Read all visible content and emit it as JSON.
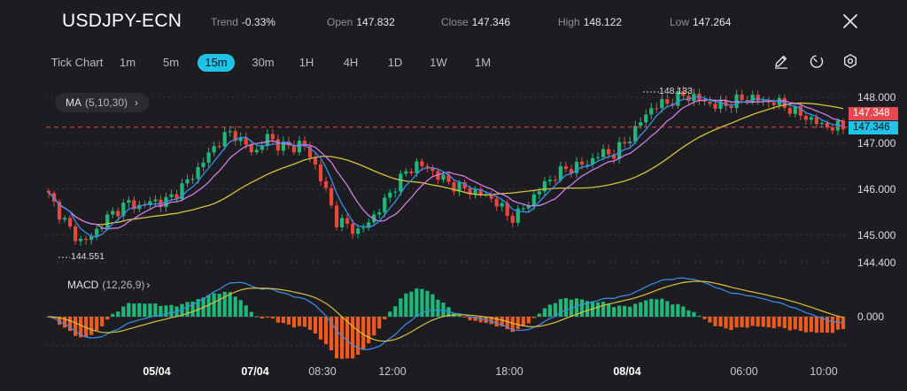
{
  "header": {
    "symbol": "USDJPY-ECN",
    "trend_label": "Trend",
    "trend_value": "-0.33%",
    "open_label": "Open",
    "open_value": "147.832",
    "close_label": "Close",
    "close_value": "147.346",
    "high_label": "High",
    "high_value": "148.122",
    "low_label": "Low",
    "low_value": "147.264"
  },
  "timeframes": {
    "tick": "Tick Chart",
    "items": [
      "1m",
      "5m",
      "15m",
      "30m",
      "1H",
      "4H",
      "1D",
      "1W",
      "1M"
    ],
    "active": "15m"
  },
  "tools": {
    "draw_icon": "pencil-icon",
    "indicator_icon": "timer-icon",
    "settings_icon": "hexagon-gear-icon"
  },
  "ma_indicator": {
    "name": "MA",
    "params": "(5,10,30)",
    "chevron": "›"
  },
  "macd_indicator": {
    "name": "MACD",
    "params": "(12,26,9)",
    "chevron": "›"
  },
  "price_axis": {
    "labels": [
      "148.000",
      "147.000",
      "146.000",
      "145.000",
      "144.400"
    ],
    "macd_zero": "0.000"
  },
  "price_tags": {
    "open_marker": "147.348",
    "current": "147.346"
  },
  "markers": {
    "high": "148.133",
    "low": "144.551"
  },
  "time_axis": [
    {
      "label": "05/04",
      "bold": true
    },
    {
      "label": "07/04",
      "bold": true
    },
    {
      "label": "08:30",
      "bold": false
    },
    {
      "label": "12:00",
      "bold": false
    },
    {
      "label": "18:00",
      "bold": false
    },
    {
      "label": "08/04",
      "bold": true
    },
    {
      "label": "06:00",
      "bold": false
    },
    {
      "label": "10:00",
      "bold": false
    }
  ],
  "colors": {
    "bull": "#1fb77a",
    "bear": "#e8473c",
    "ma5": "#3a8ff0",
    "ma10": "#d27ce8",
    "ma30": "#d8c23c",
    "macd_pos": "#1fb77a",
    "macd_neg": "#ee5b21",
    "accent": "#1ec3e6",
    "open_tag": "#e8474f"
  },
  "chart_data": {
    "type": "candlestick",
    "close_series": [
      145.85,
      145.45,
      145.05,
      144.82,
      145.05,
      145.35,
      145.55,
      145.7,
      145.6,
      145.75,
      145.7,
      145.9,
      146.15,
      146.45,
      146.8,
      147.1,
      147.25,
      146.95,
      146.8,
      147.15,
      146.95,
      146.9,
      147.0,
      146.6,
      146.0,
      145.3,
      145.2,
      145.05,
      145.35,
      145.65,
      146.05,
      146.35,
      146.55,
      146.45,
      146.25,
      146.1,
      146.0,
      145.95,
      145.85,
      145.7,
      145.35,
      145.5,
      145.8,
      146.1,
      146.3,
      146.45,
      146.5,
      146.6,
      146.8,
      146.75,
      147.0,
      147.3,
      147.7,
      147.85,
      147.9,
      148.05,
      148.0,
      147.9,
      147.8,
      147.85,
      147.95,
      148.0,
      147.9,
      147.9,
      147.8,
      147.65,
      147.55,
      147.4,
      147.35,
      147.35
    ],
    "ma_periods": [
      5,
      10,
      30
    ],
    "macd_params": [
      12,
      26,
      9
    ],
    "high_marker": 148.133,
    "low_marker": 144.551,
    "last_close": 147.346,
    "open_line": 147.348,
    "ylim": [
      144.4,
      148.35
    ],
    "y_ticks": [
      148.0,
      147.0,
      146.0,
      145.0,
      144.4
    ]
  }
}
